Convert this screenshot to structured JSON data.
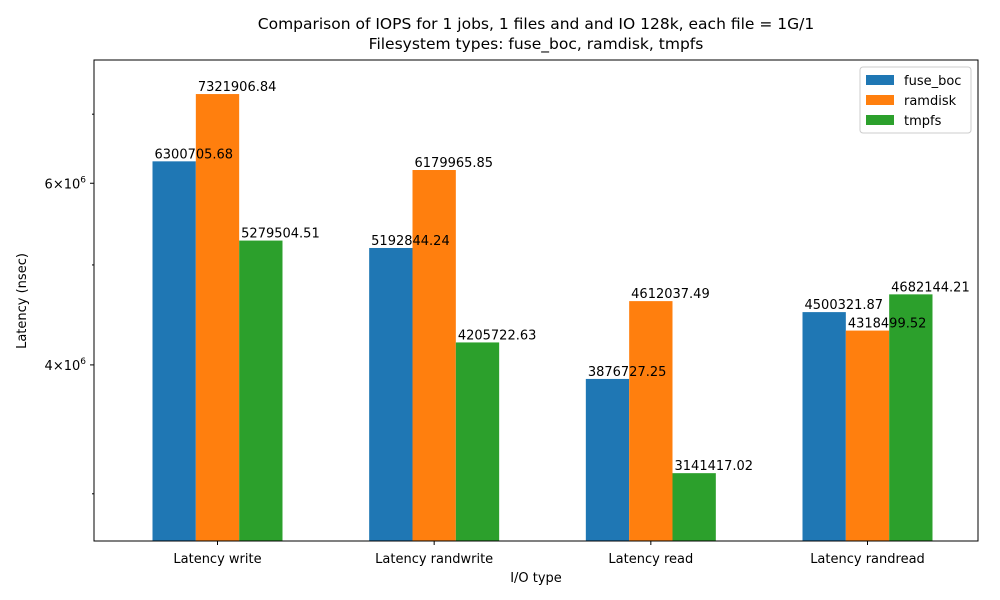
{
  "chart_data": {
    "type": "bar",
    "title": "Comparison of IOPS for 1 jobs, 1 files and  and IO 128k, each file = 1G/1",
    "subtitle": "Filesystem types: fuse_boc, ramdisk, tmpfs",
    "xlabel": "I/O type",
    "ylabel": "Latency (nsec)",
    "yscale": "log",
    "ylim": [
      2700000,
      7900000
    ],
    "yticks": [
      {
        "value": 4000000,
        "mantissa": "4",
        "exponent": "6"
      },
      {
        "value": 6000000,
        "mantissa": "6",
        "exponent": "6"
      }
    ],
    "yminor": [
      3000000,
      5000000,
      7000000
    ],
    "categories": [
      "Latency write",
      "Latency randwrite",
      "Latency read",
      "Latency randread"
    ],
    "series": [
      {
        "name": "fuse_boc",
        "color": "#1f77b4",
        "values": [
          6300705.68,
          5192844.24,
          3876727.25,
          4500321.87
        ],
        "labels": [
          "6300705.68",
          "5192844.24",
          "3876727.25",
          "4500321.87"
        ]
      },
      {
        "name": "ramdisk",
        "color": "#ff7f0e",
        "values": [
          7321906.84,
          6179965.85,
          4612037.49,
          4318499.52
        ],
        "labels": [
          "7321906.84",
          "6179965.85",
          "4612037.49",
          "4318499.52"
        ]
      },
      {
        "name": "tmpfs",
        "color": "#2ca02c",
        "values": [
          5279504.51,
          4205722.63,
          3141417.02,
          4682144.21
        ],
        "labels": [
          "5279504.51",
          "4205722.63",
          "3141417.02",
          "4682144.21"
        ]
      }
    ],
    "grid": false,
    "legend": "top-right"
  }
}
